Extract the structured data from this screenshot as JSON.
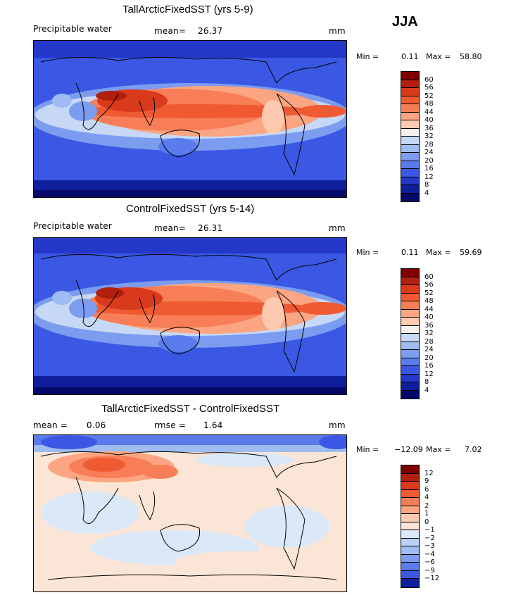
{
  "season": "JJA",
  "panels": [
    {
      "id": "tall",
      "title": "TallArcticFixedSST (yrs 5-9)",
      "left_label": "Precipitable water",
      "center_label": "mean=",
      "center_value": "26.37",
      "extra_label": "",
      "extra_value": "",
      "units": "mm",
      "min_label": "Min =",
      "min_value": "0.11",
      "max_label": "Max =",
      "max_value": "58.80",
      "ticks": [
        "60",
        "56",
        "52",
        "48",
        "44",
        "40",
        "36",
        "32",
        "28",
        "24",
        "20",
        "16",
        "12",
        "8",
        "4"
      ]
    },
    {
      "id": "control",
      "title": "ControlFixedSST (yrs 5-14)",
      "left_label": "Precipitable water",
      "center_label": "mean=",
      "center_value": "26.31",
      "extra_label": "",
      "extra_value": "",
      "units": "mm",
      "min_label": "Min =",
      "min_value": "0.11",
      "max_label": "Max =",
      "max_value": "59.69",
      "ticks": [
        "60",
        "56",
        "52",
        "48",
        "44",
        "40",
        "36",
        "32",
        "28",
        "24",
        "20",
        "16",
        "12",
        "8",
        "4"
      ]
    },
    {
      "id": "diff",
      "title": "TallArcticFixedSST - ControlFixedSST",
      "left_label": "mean =",
      "left_value": "0.06",
      "center_label": "rmse =",
      "center_value": "1.64",
      "units": "mm",
      "min_label": "Min =",
      "min_value": "−12.09",
      "max_label": "Max =",
      "max_value": "7.02",
      "ticks": [
        "12",
        "9",
        "6",
        "4",
        "2",
        "1",
        "0",
        "−1",
        "−2",
        "−3",
        "−4",
        "−6",
        "−9",
        "−12"
      ]
    }
  ],
  "colors": {
    "field_scale": [
      "#7f0000",
      "#b0200c",
      "#d93a1c",
      "#ef5a32",
      "#f77e56",
      "#fba582",
      "#fdcab0",
      "#f5f0eb",
      "#c6d8f5",
      "#9fbcf2",
      "#7c9cf0",
      "#5a7bec",
      "#3a58e4",
      "#2338c8",
      "#0f1e9a",
      "#050a6a"
    ],
    "diff_scale": [
      "#7f0000",
      "#b0200c",
      "#d93a1c",
      "#ef5a32",
      "#f77e56",
      "#fba582",
      "#fdcab0",
      "#fbe5d6",
      "#dbe8f8",
      "#bcd0f5",
      "#9fbcf2",
      "#7c9cf0",
      "#5a7bec",
      "#3a58e4",
      "#0f1e9a"
    ]
  }
}
